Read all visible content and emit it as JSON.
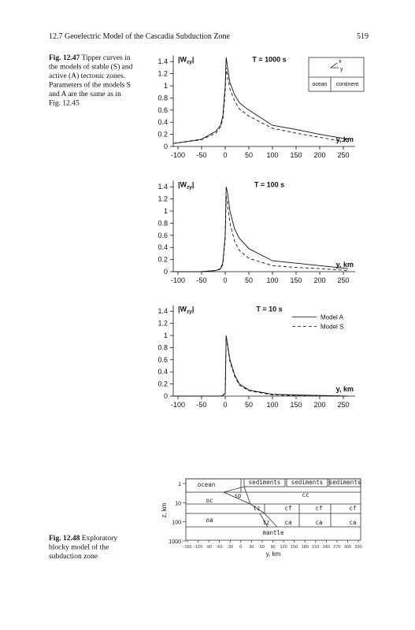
{
  "header": {
    "title": "12.7 Geoelectric Model of the Cascadia Subduction Zone",
    "page": "519"
  },
  "caption_1": {
    "label": "Fig. 12.47",
    "lines": [
      "Tipper curves in",
      "the models of stable (S) and",
      "active (A) tectonic zones.",
      "Parameters of the models S",
      "and A are the same as in",
      "Fig. 12.45"
    ]
  },
  "chart_data": [
    {
      "type": "line",
      "title": "T = 1000 s",
      "y_label": [
        "|W",
        "zy",
        "|"
      ],
      "x_label": "y, km",
      "inset": [
        "x",
        "y",
        "ocean",
        "continent"
      ],
      "x": [
        -110,
        -50,
        -20,
        -10,
        -5,
        0,
        2,
        5,
        10,
        20,
        30,
        50,
        100,
        150,
        200,
        260
      ],
      "series": [
        {
          "color": "#111",
          "dash": false,
          "values": [
            0.05,
            0.12,
            0.25,
            0.35,
            0.5,
            1.0,
            1.47,
            1.3,
            1.05,
            0.85,
            0.72,
            0.6,
            0.35,
            0.28,
            0.2,
            0.12
          ]
        },
        {
          "color": "#111",
          "dash": true,
          "values": [
            0.05,
            0.11,
            0.22,
            0.32,
            0.45,
            0.9,
            1.3,
            1.15,
            0.95,
            0.75,
            0.62,
            0.5,
            0.3,
            0.22,
            0.15,
            0.07
          ]
        }
      ],
      "xlim": [
        -110,
        275
      ],
      "ylim": [
        0,
        1.5
      ],
      "xticks": [
        -100,
        -50,
        0,
        50,
        100,
        150,
        200,
        250
      ],
      "yticks": [
        0,
        0.2,
        0.4,
        0.6,
        0.8,
        1,
        1.2,
        1.4
      ],
      "legend": false
    },
    {
      "type": "line",
      "title": "T = 100 s",
      "y_label": [
        "|W",
        "zy",
        "|"
      ],
      "x_label": "y, km",
      "x": [
        -110,
        -50,
        -20,
        -10,
        -5,
        0,
        2,
        5,
        10,
        20,
        30,
        50,
        100,
        150,
        200,
        260
      ],
      "series": [
        {
          "color": "#111",
          "dash": false,
          "values": [
            0,
            0,
            0.02,
            0.05,
            0.15,
            0.6,
            1.4,
            1.3,
            1.0,
            0.7,
            0.55,
            0.38,
            0.18,
            0.14,
            0.1,
            0.05
          ]
        },
        {
          "color": "#111",
          "dash": true,
          "values": [
            0,
            0,
            0.02,
            0.04,
            0.12,
            0.55,
            1.25,
            1.1,
            0.8,
            0.5,
            0.35,
            0.22,
            0.1,
            0.07,
            0.05,
            0.02
          ]
        }
      ],
      "xlim": [
        -110,
        275
      ],
      "ylim": [
        0,
        1.5
      ],
      "xticks": [
        -100,
        -50,
        0,
        50,
        100,
        150,
        200,
        250
      ],
      "yticks": [
        0,
        0.2,
        0.4,
        0.6,
        0.8,
        1,
        1.2,
        1.4
      ],
      "legend": false
    },
    {
      "type": "line",
      "title": "T = 10 s",
      "y_label": [
        "|W",
        "zy",
        "|"
      ],
      "x_label": "y, km",
      "x": [
        -110,
        -50,
        -20,
        -10,
        -5,
        0,
        2,
        5,
        10,
        20,
        30,
        50,
        100,
        150,
        200,
        260
      ],
      "series": [
        {
          "name": "Model A",
          "color": "#111",
          "dash": false,
          "values": [
            0,
            0,
            0,
            0,
            0.01,
            0.05,
            1.0,
            0.85,
            0.6,
            0.35,
            0.2,
            0.1,
            0.03,
            0.02,
            0.01,
            0
          ]
        },
        {
          "name": "Model S",
          "color": "#111",
          "dash": true,
          "values": [
            0,
            0,
            0,
            0,
            0.01,
            0.04,
            0.98,
            0.82,
            0.57,
            0.33,
            0.18,
            0.09,
            0.02,
            0.01,
            0.01,
            0
          ]
        }
      ],
      "xlim": [
        -110,
        275
      ],
      "ylim": [
        0,
        1.5
      ],
      "xticks": [
        -100,
        -50,
        0,
        50,
        100,
        150,
        200,
        250
      ],
      "yticks": [
        0,
        0.2,
        0.4,
        0.6,
        0.8,
        1,
        1.2,
        1.4
      ],
      "legend": true
    }
  ],
  "caption_2": {
    "label": "Fig. 12.48",
    "lines": [
      "Exploratory",
      "blocky model of the",
      "subduction zone"
    ]
  },
  "diagram": {
    "blocks": [
      "ocean",
      "sediments",
      "sediments",
      "sediments",
      "sp",
      "cc",
      "oc",
      "tz",
      "cf",
      "cf",
      "cf",
      "oa",
      "tz",
      "ca",
      "ca",
      "ca",
      "mantle"
    ],
    "y_label": "z, km",
    "x_label": "y, km",
    "yticks": [
      1,
      10,
      100,
      1000
    ],
    "xticks": [
      -150,
      -120,
      -90,
      -60,
      -30,
      0,
      30,
      60,
      90,
      120,
      150,
      180,
      210,
      240,
      270,
      300,
      330
    ]
  }
}
